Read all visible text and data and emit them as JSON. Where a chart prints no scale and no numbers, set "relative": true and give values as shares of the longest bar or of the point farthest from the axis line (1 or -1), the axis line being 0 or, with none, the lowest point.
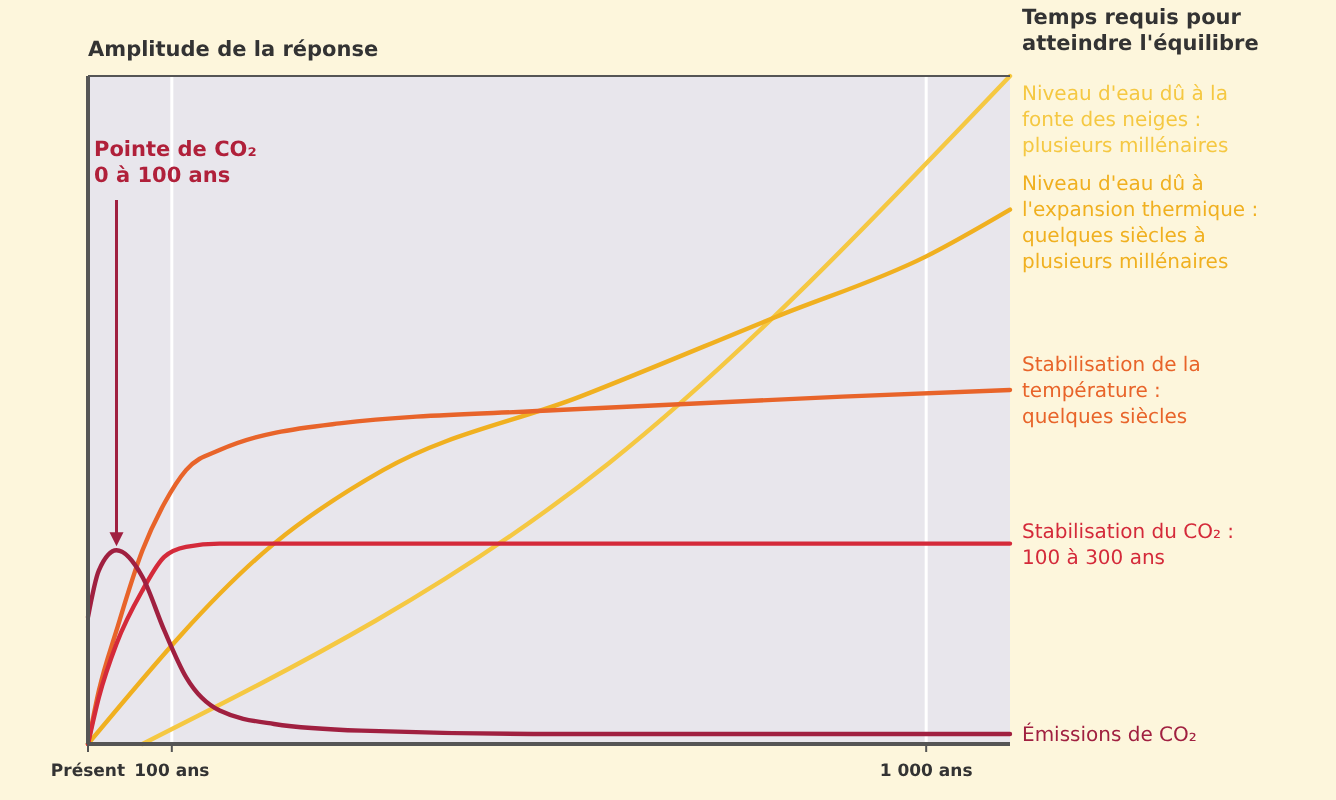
{
  "chart_data": {
    "type": "line",
    "relative": true,
    "ylabel": "Amplitude de la réponse",
    "legend_title": "Temps requis pour\natteindre l'équilibre",
    "legend": "right",
    "grid": "x",
    "xlim": [
      0,
      1100
    ],
    "xticks": [
      {
        "value": 0,
        "label": "Présent"
      },
      {
        "value": 100,
        "label": "100 ans"
      },
      {
        "value": 1000,
        "label": "1 000 ans"
      }
    ],
    "annotations": [
      {
        "text": "Pointe de CO₂\n0 à 100 ans",
        "x": 34,
        "y": 0.29
      }
    ],
    "series": [
      {
        "name": "Niveau d'eau dû à la\nfonte des neiges :\nplusieurs millénaires",
        "color": "#f5c842",
        "x": [
          65,
          621,
          1100
        ],
        "values": [
          0,
          0.42,
          1
        ]
      },
      {
        "name": "Niveau d'eau dû à\nl'expansion thermique :\nquelques siècles à\nplusieurs millénaires",
        "color": "#f0b020",
        "x": [
          0,
          222,
          352,
          587,
          822,
          1000,
          1100
        ],
        "values": [
          0,
          0.3,
          0.41,
          0.52,
          0.64,
          0.73,
          0.8
        ]
      },
      {
        "name": "Stabilisation de la\ntempérature :\nquelques siècles",
        "color": "#e8642a",
        "x": [
          0,
          13,
          34,
          65,
          91,
          117,
          157,
          300,
          561,
          900,
          1100
        ],
        "values": [
          0,
          0.08,
          0.17,
          0.29,
          0.36,
          0.41,
          0.44,
          0.48,
          0.5,
          0.52,
          0.53
        ]
      },
      {
        "name": "Stabilisation du CO₂ :\n100 à 300 ans",
        "color": "#d42a3a",
        "x": [
          0,
          13,
          34,
          65,
          91,
          117,
          157,
          1100
        ],
        "values": [
          0,
          0.07,
          0.15,
          0.23,
          0.28,
          0.295,
          0.3,
          0.3
        ]
      },
      {
        "name": "Émissions de CO₂",
        "color": "#a02040",
        "x": [
          0,
          13,
          34,
          65,
          91,
          117,
          157,
          222,
          326,
          561,
          1100
        ],
        "values": [
          0.19,
          0.26,
          0.29,
          0.25,
          0.17,
          0.1,
          0.05,
          0.03,
          0.02,
          0.015,
          0.015
        ]
      }
    ]
  }
}
